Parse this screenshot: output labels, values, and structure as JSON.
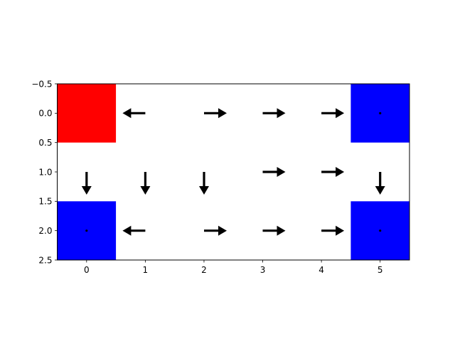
{
  "chart_data": {
    "type": "heatmap",
    "title": "",
    "xlabel": "",
    "ylabel": "",
    "xlim": [
      -0.5,
      5.5
    ],
    "ylim": [
      2.5,
      -0.5
    ],
    "x_ticks": [
      "0",
      "1",
      "2",
      "3",
      "4",
      "5"
    ],
    "y_ticks": [
      "−0.5",
      "0.0",
      "0.5",
      "1.0",
      "1.5",
      "2.0",
      "2.5"
    ],
    "grid": false,
    "cells": [
      {
        "row": 0,
        "col": 0,
        "color": "#ff0000"
      },
      {
        "row": 0,
        "col": 5,
        "color": "#0000ff"
      },
      {
        "row": 2,
        "col": 0,
        "color": "#0000ff"
      },
      {
        "row": 2,
        "col": 5,
        "color": "#0000ff"
      }
    ],
    "arrows": [
      {
        "row": 0,
        "col": 1,
        "direction": "left"
      },
      {
        "row": 0,
        "col": 2,
        "direction": "right"
      },
      {
        "row": 0,
        "col": 3,
        "direction": "right"
      },
      {
        "row": 0,
        "col": 4,
        "direction": "right"
      },
      {
        "row": 1,
        "col": 0,
        "direction": "down"
      },
      {
        "row": 1,
        "col": 1,
        "direction": "down"
      },
      {
        "row": 1,
        "col": 2,
        "direction": "down"
      },
      {
        "row": 1,
        "col": 3,
        "direction": "right"
      },
      {
        "row": 1,
        "col": 4,
        "direction": "right"
      },
      {
        "row": 1,
        "col": 5,
        "direction": "down"
      },
      {
        "row": 2,
        "col": 1,
        "direction": "left"
      },
      {
        "row": 2,
        "col": 2,
        "direction": "right"
      },
      {
        "row": 2,
        "col": 3,
        "direction": "right"
      },
      {
        "row": 2,
        "col": 4,
        "direction": "right"
      }
    ],
    "dots": [
      {
        "row": 0,
        "col": 5
      },
      {
        "row": 2,
        "col": 0
      },
      {
        "row": 2,
        "col": 5
      }
    ],
    "arrow_color": "#000000",
    "background": "#ffffff"
  }
}
